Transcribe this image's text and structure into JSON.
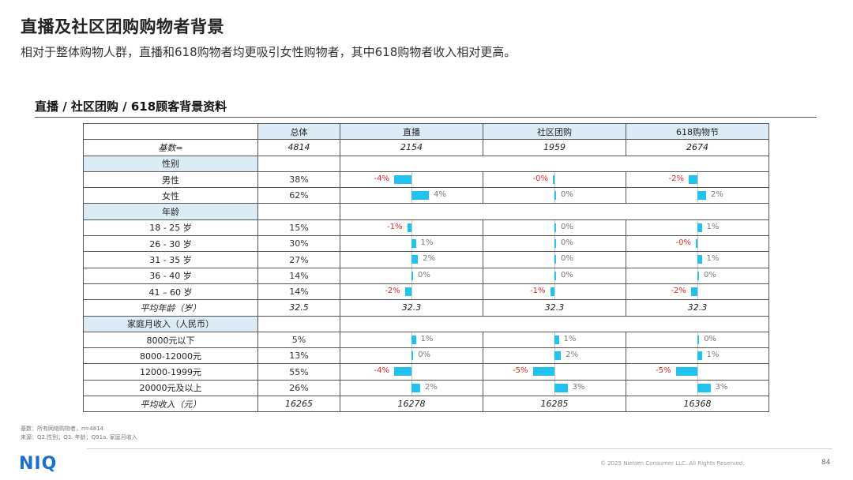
{
  "header": {
    "title": "直播及社区团购购物者背景",
    "subtitle": "相对于整体购物人群，直播和618购物者均更吸引女性购物者，其中618购物者收入相对更高。"
  },
  "section_title": "直播 / 社区团购 / 618顾客背景资料",
  "table": {
    "columns": [
      "总体",
      "直播",
      "社区团购",
      "618购物节"
    ],
    "base": {
      "label": "基数=",
      "values": [
        "4814",
        "2154",
        "1959",
        "2674"
      ]
    },
    "groups": [
      {
        "title": "性别",
        "rows": [
          {
            "label": "男性",
            "total": "38%",
            "diffs": [
              {
                "text": "-4%",
                "v": -4
              },
              {
                "text": "-0%",
                "v": -0.3
              },
              {
                "text": "-2%",
                "v": -2
              }
            ]
          },
          {
            "label": "女性",
            "total": "62%",
            "diffs": [
              {
                "text": "4%",
                "v": 4
              },
              {
                "text": "0%",
                "v": 0.3
              },
              {
                "text": "2%",
                "v": 2
              }
            ]
          }
        ]
      },
      {
        "title": "年龄",
        "rows": [
          {
            "label": "18 - 25 岁",
            "total": "15%",
            "diffs": [
              {
                "text": "-1%",
                "v": -1
              },
              {
                "text": "0%",
                "v": 0
              },
              {
                "text": "1%",
                "v": 1
              }
            ]
          },
          {
            "label": "26 - 30 岁",
            "total": "30%",
            "diffs": [
              {
                "text": "1%",
                "v": 1
              },
              {
                "text": "0%",
                "v": 0
              },
              {
                "text": "-0%",
                "v": -0.2
              }
            ]
          },
          {
            "label": "31 - 35 岁",
            "total": "27%",
            "diffs": [
              {
                "text": "2%",
                "v": 1.5
              },
              {
                "text": "0%",
                "v": 0.3
              },
              {
                "text": "1%",
                "v": 1
              }
            ]
          },
          {
            "label": "36 - 40 岁",
            "total": "14%",
            "diffs": [
              {
                "text": "0%",
                "v": 0.2
              },
              {
                "text": "0%",
                "v": 0.3
              },
              {
                "text": "0%",
                "v": 0.2
              }
            ]
          },
          {
            "label": "41 – 60 岁",
            "total": "14%",
            "diffs": [
              {
                "text": "-2%",
                "v": -1.5
              },
              {
                "text": "-1%",
                "v": -1
              },
              {
                "text": "-2%",
                "v": -1.5
              }
            ]
          }
        ],
        "summary": {
          "label": "平均年龄（岁）",
          "values": [
            "32.5",
            "32.3",
            "32.3",
            "32.3"
          ]
        }
      },
      {
        "title": "家庭月收入（人民币）",
        "rows": [
          {
            "label": "8000元以下",
            "total": "5%",
            "diffs": [
              {
                "text": "1%",
                "v": 1
              },
              {
                "text": "1%",
                "v": 1
              },
              {
                "text": "0%",
                "v": 0.4
              }
            ]
          },
          {
            "label": "8000-12000元",
            "total": "13%",
            "diffs": [
              {
                "text": "0%",
                "v": 0.4
              },
              {
                "text": "2%",
                "v": 1.5
              },
              {
                "text": "1%",
                "v": 1
              }
            ]
          },
          {
            "label": "12000-1999元",
            "total": "55%",
            "diffs": [
              {
                "text": "-4%",
                "v": -4
              },
              {
                "text": "-5%",
                "v": -5
              },
              {
                "text": "-5%",
                "v": -5
              }
            ]
          },
          {
            "label": "20000元及以上",
            "total": "26%",
            "diffs": [
              {
                "text": "2%",
                "v": 2
              },
              {
                "text": "3%",
                "v": 3
              },
              {
                "text": "3%",
                "v": 3
              }
            ]
          }
        ],
        "summary": {
          "label": "平均收入（元）",
          "values": [
            "16265",
            "16278",
            "16285",
            "16368"
          ]
        }
      }
    ]
  },
  "footnotes": {
    "base_note": "基数：所有网络购物者，n=4814",
    "source_note": "来源：Q2.性别；Q3. 年龄；Q91a. 家庭月收入"
  },
  "footer": {
    "logo": "NIQ",
    "copyright": "© 2025 Nielsen Consumer LLC. All Rights Reserved.",
    "page_number": "84"
  },
  "colors": {
    "bar": "#1fc3ee",
    "negative_text": "#d8281f",
    "header_fill": "#dcecf7",
    "logo": "#1a6fd0"
  }
}
